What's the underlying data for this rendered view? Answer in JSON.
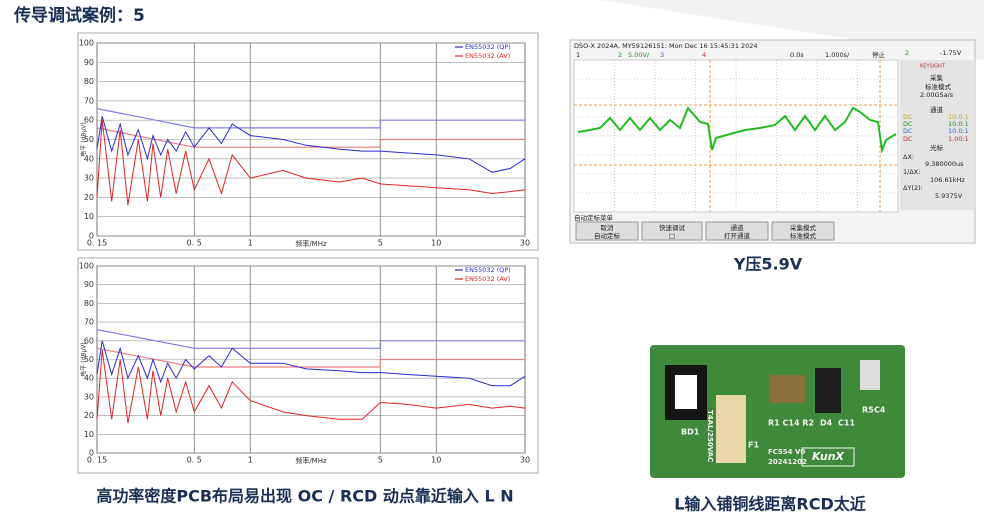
{
  "header": {
    "title": "传导调试案例：5"
  },
  "emc_charts": [
    {
      "y_label": "电平 (dBμV)",
      "x_label": "频率/MHz",
      "ylim": [
        0,
        100
      ],
      "yticks": [
        0,
        10,
        20,
        30,
        40,
        50,
        60,
        70,
        80,
        90,
        100
      ],
      "xlim": [
        0.15,
        30
      ],
      "xticks": [
        {
          "value": 0.15,
          "label": "0. 15"
        },
        {
          "value": 0.5,
          "label": "0. 5"
        },
        1,
        5,
        10,
        30
      ],
      "log_x": true,
      "grid": true,
      "series": [
        {
          "name": "EN55032 (QP)",
          "color": "#2a2ad0",
          "x": [
            0.15,
            0.16,
            0.18,
            0.2,
            0.22,
            0.25,
            0.28,
            0.3,
            0.33,
            0.36,
            0.4,
            0.45,
            0.5,
            0.6,
            0.7,
            0.8,
            1,
            1.5,
            2,
            3,
            4,
            5,
            7,
            10,
            15,
            20,
            25,
            30
          ],
          "values": [
            45,
            62,
            44,
            58,
            42,
            55,
            40,
            52,
            42,
            50,
            44,
            54,
            46,
            56,
            48,
            58,
            52,
            50,
            47,
            45,
            44,
            44,
            43,
            42,
            40,
            33,
            35,
            40
          ]
        },
        {
          "name": "EN55032 (AV)",
          "color": "#e02424",
          "x": [
            0.15,
            0.16,
            0.18,
            0.2,
            0.22,
            0.25,
            0.28,
            0.3,
            0.33,
            0.36,
            0.4,
            0.45,
            0.5,
            0.6,
            0.7,
            0.8,
            1,
            1.5,
            2,
            3,
            4,
            5,
            7,
            10,
            15,
            20,
            25,
            30
          ],
          "values": [
            20,
            60,
            18,
            55,
            16,
            50,
            18,
            48,
            20,
            45,
            22,
            44,
            24,
            40,
            22,
            42,
            30,
            34,
            30,
            28,
            30,
            27,
            26,
            25,
            24,
            22,
            23,
            24
          ]
        }
      ],
      "limits": [
        {
          "color": "#7f7fe6",
          "x": [
            0.15,
            0.5,
            5,
            5,
            30
          ],
          "values": [
            66,
            56,
            56,
            60,
            60
          ]
        },
        {
          "color": "#e67f7f",
          "x": [
            0.15,
            0.5,
            5,
            5,
            30
          ],
          "values": [
            56,
            46,
            46,
            50,
            50
          ]
        }
      ]
    },
    {
      "y_label": "电平 (dBμV)",
      "x_label": "频率/MHz",
      "ylim": [
        0,
        100
      ],
      "yticks": [
        0,
        10,
        20,
        30,
        40,
        50,
        60,
        70,
        80,
        90,
        100
      ],
      "xlim": [
        0.15,
        30
      ],
      "xticks": [
        {
          "value": 0.15,
          "label": "0. 15"
        },
        {
          "value": 0.5,
          "label": "0. 5"
        },
        1,
        5,
        10,
        30
      ],
      "log_x": true,
      "grid": true,
      "series": [
        {
          "name": "EN55032 (QP)",
          "color": "#2a2ad0",
          "x": [
            0.15,
            0.16,
            0.18,
            0.2,
            0.22,
            0.25,
            0.28,
            0.3,
            0.33,
            0.36,
            0.4,
            0.45,
            0.5,
            0.6,
            0.7,
            0.8,
            1,
            1.5,
            2,
            3,
            4,
            5,
            7,
            10,
            15,
            20,
            25,
            30
          ],
          "values": [
            42,
            60,
            42,
            56,
            40,
            52,
            40,
            50,
            38,
            48,
            40,
            50,
            45,
            52,
            46,
            56,
            48,
            48,
            45,
            44,
            43,
            43,
            42,
            41,
            40,
            36,
            36,
            41
          ]
        },
        {
          "name": "EN55032 (AV)",
          "color": "#e02424",
          "x": [
            0.15,
            0.16,
            0.18,
            0.2,
            0.22,
            0.25,
            0.28,
            0.3,
            0.33,
            0.36,
            0.4,
            0.45,
            0.5,
            0.6,
            0.7,
            0.8,
            1,
            1.5,
            2,
            3,
            4,
            5,
            7,
            10,
            15,
            20,
            25,
            30
          ],
          "values": [
            18,
            55,
            18,
            50,
            16,
            46,
            18,
            44,
            20,
            40,
            22,
            38,
            22,
            36,
            24,
            38,
            28,
            22,
            20,
            18,
            18,
            27,
            26,
            24,
            26,
            24,
            25,
            24
          ]
        }
      ],
      "limits": [
        {
          "color": "#7f7fe6",
          "x": [
            0.15,
            0.5,
            5,
            5,
            30
          ],
          "values": [
            66,
            56,
            56,
            60,
            60
          ]
        },
        {
          "color": "#e67f7f",
          "x": [
            0.15,
            0.5,
            5,
            5,
            30
          ],
          "values": [
            56,
            46,
            46,
            50,
            50
          ]
        }
      ]
    }
  ],
  "scope": {
    "header": "DSO-X 2024A, MY59126151: Mon Dec 16 15:45:31 2024",
    "channels": [
      "1",
      "2",
      "5.00V/",
      "3",
      "4"
    ],
    "time": "0.0s",
    "timebase": "1.000s/",
    "status": "停止",
    "trig_ch": "2",
    "trig_level": "-1.75V",
    "brand": "KEYSIGHT",
    "acq_title": "采集",
    "acq_mode": "标准模式",
    "sample_rate": "2.00GSa/s",
    "chan_title": "通道",
    "chan_rows": [
      [
        "DC",
        "10.0:1"
      ],
      [
        "DC",
        "10.0:1"
      ],
      [
        "DC",
        "10.0:1"
      ],
      [
        "DC",
        "1.00:1"
      ]
    ],
    "cursor_title": "光标",
    "dx_label": "ΔX:",
    "dx": "9.380000us",
    "inv_dx_label": "1/ΔX:",
    "inv_dx": "106.61kHz",
    "dy_label": "ΔY(2):",
    "dy": "5.9375V",
    "menu_title": "自动定标菜单",
    "softkeys": [
      [
        "取消",
        "自动定标"
      ],
      [
        "快速调试",
        "□"
      ],
      [
        "通道",
        "打开通道"
      ],
      [
        "采集模式",
        "标准模式"
      ]
    ]
  },
  "pcb": {
    "labels": [
      "BD1",
      "F1",
      "T4AL/250VAC",
      "R1 C14 R2",
      "D4",
      "C11",
      "R5",
      "C4",
      "FC554 V0",
      "20241202",
      "KunX"
    ]
  },
  "captions": [
    "高功率密度PCB布局易出现  OC / RCD 动点靠近输入 L N",
    "Y压5.9V",
    "L输入铺铜线距离RCD太近"
  ]
}
